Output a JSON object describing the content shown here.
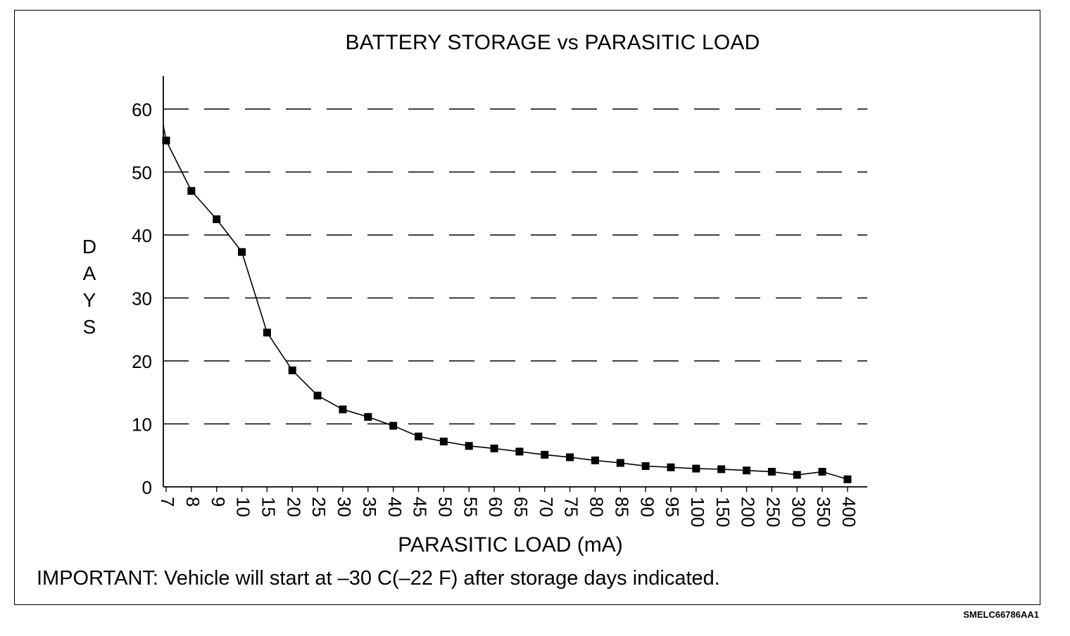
{
  "code": "SMELC66786AA1",
  "note": "IMPORTANT: Vehicle will start at –30 C(–22 F) after storage days indicated.",
  "chart_data": {
    "type": "line",
    "title": "BATTERY STORAGE vs PARASITIC LOAD",
    "xlabel": "PARASITIC LOAD (mA)",
    "ylabel": "DAYS",
    "ylim": [
      0,
      65
    ],
    "yticks": [
      0,
      10,
      20,
      30,
      40,
      50,
      60
    ],
    "grid": "horizontal dashed",
    "categories": [
      "7",
      "8",
      "9",
      "10",
      "15",
      "20",
      "25",
      "30",
      "35",
      "40",
      "45",
      "50",
      "55",
      "60",
      "65",
      "70",
      "75",
      "80",
      "85",
      "90",
      "95",
      "100",
      "150",
      "200",
      "250",
      "300",
      "350",
      "400"
    ],
    "series": [
      {
        "values": [
          55,
          47,
          42.5,
          37.3,
          24.5,
          18.5,
          14.5,
          12.3,
          11.1,
          9.7,
          8.0,
          7.2,
          6.5,
          6.1,
          5.6,
          5.1,
          4.7,
          4.2,
          3.8,
          3.3,
          3.1,
          2.9,
          2.8,
          2.6,
          2.4,
          1.9,
          2.4,
          1.2
        ]
      }
    ]
  }
}
